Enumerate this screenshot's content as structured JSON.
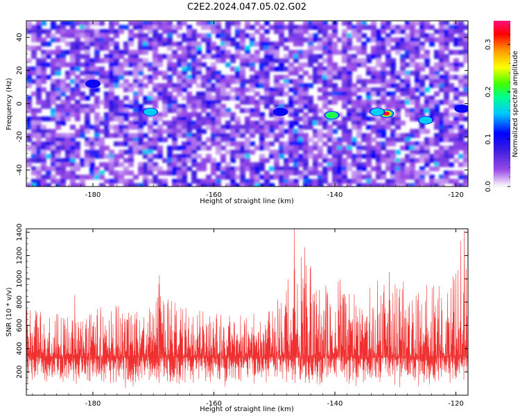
{
  "title": "C2E2.2024.047.05.02.G02",
  "colors": {
    "snr_line": "#f03030",
    "axis": "#000000",
    "spectrogram_background": "#ffffff"
  },
  "chart_data": [
    {
      "type": "heatmap",
      "xlabel": "Height of straight line (km)",
      "ylabel": "Frequency (Hz)",
      "xlim": [
        -191,
        -118
      ],
      "ylim": [
        -50,
        50
      ],
      "xticks": [
        -180,
        -160,
        -140,
        -120
      ],
      "yticks": [
        -40,
        -20,
        0,
        20,
        40
      ],
      "colorbar": {
        "label": "Normalized spectral amplitude",
        "range": [
          0,
          0.35
        ],
        "ticks": [
          0.0,
          0.1,
          0.2,
          0.3
        ],
        "colormap": [
          "#ffffff",
          "#9b4be6",
          "#3a1de0",
          "#0000ff",
          "#00c8ff",
          "#00ff90",
          "#40ff00",
          "#ffff00",
          "#ff9900",
          "#ff0000",
          "#ff1080"
        ]
      },
      "hotspots": [
        {
          "x": -170.5,
          "y": -5,
          "value": 0.18
        },
        {
          "x": -140.5,
          "y": -7,
          "value": 0.22
        },
        {
          "x": -131.5,
          "y": -6,
          "value": 0.33
        },
        {
          "x": -133,
          "y": -5,
          "value": 0.16
        },
        {
          "x": -125,
          "y": -10,
          "value": 0.17
        },
        {
          "x": -119,
          "y": -3,
          "value": 0.14
        },
        {
          "x": -149,
          "y": -5,
          "value": 0.12
        },
        {
          "x": -180,
          "y": 12,
          "value": 0.11
        }
      ]
    },
    {
      "type": "line",
      "xlabel": "Height of straight line (km)",
      "ylabel": "SNR (10 * v/v)",
      "xlim": [
        -191,
        -118
      ],
      "ylim": [
        0,
        1430
      ],
      "xticks": [
        -180,
        -160,
        -140,
        -120
      ],
      "yticks": [
        200,
        400,
        600,
        800,
        1000,
        1200,
        1400
      ],
      "series": [
        {
          "color": "#f03030",
          "baseline": 330,
          "envelope_x": [
            -191,
            -186,
            -182,
            -178,
            -175,
            -172,
            -169,
            -166,
            -162,
            -158,
            -154,
            -150,
            -148,
            -146,
            -145,
            -143,
            -141,
            -139,
            -136,
            -133,
            -130,
            -127,
            -124,
            -121,
            -119,
            -118
          ],
          "envelope_max": [
            740,
            700,
            640,
            780,
            760,
            700,
            980,
            760,
            720,
            680,
            700,
            760,
            980,
            1400,
            1260,
            1060,
            900,
            1000,
            860,
            1040,
            1080,
            920,
            960,
            900,
            1400,
            1300
          ],
          "peaks": [
            {
              "x": -146.7,
              "y": 1430
            },
            {
              "x": -145.0,
              "y": 1270
            },
            {
              "x": -131.0,
              "y": 1060
            },
            {
              "x": -169.0,
              "y": 1030
            },
            {
              "x": -183.0,
              "y": 860
            },
            {
              "x": -118.6,
              "y": 1410
            }
          ]
        }
      ]
    }
  ]
}
